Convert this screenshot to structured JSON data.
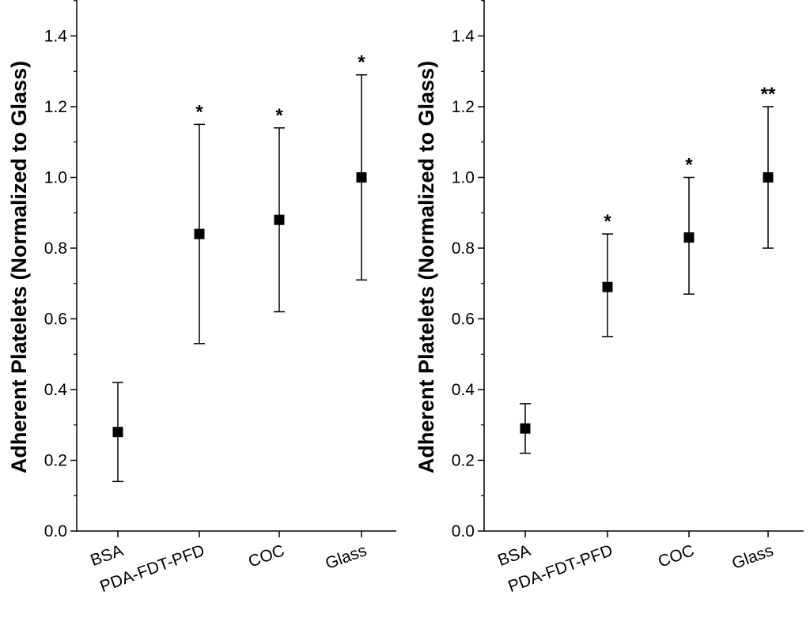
{
  "chart_data": [
    {
      "type": "scatter",
      "ylabel": "Adherent Platelets (Normalized to Glass)",
      "xlabel": "",
      "title": "",
      "ylim": [
        0,
        1.5
      ],
      "yticks": [
        "0.0",
        "0.2",
        "0.4",
        "0.6",
        "0.8",
        "1.0",
        "1.2",
        "1.4"
      ],
      "categories": [
        "BSA",
        "PDA-FDT-PFD",
        "COC",
        "Glass"
      ],
      "values": [
        0.28,
        0.84,
        0.88,
        1.0
      ],
      "error_low": [
        0.14,
        0.53,
        0.62,
        0.71
      ],
      "error_high": [
        0.42,
        1.15,
        1.14,
        1.29
      ],
      "significance": [
        "",
        "*",
        "*",
        "*"
      ]
    },
    {
      "type": "scatter",
      "ylabel": "Adherent Platelets (Normalized to Glass)",
      "xlabel": "",
      "title": "",
      "ylim": [
        0,
        1.5
      ],
      "yticks": [
        "0.0",
        "0.2",
        "0.4",
        "0.6",
        "0.8",
        "1.0",
        "1.2",
        "1.4"
      ],
      "categories": [
        "BSA",
        "PDA-FDT-PFD",
        "COC",
        "Glass"
      ],
      "values": [
        0.29,
        0.69,
        0.83,
        1.0
      ],
      "error_low": [
        0.22,
        0.55,
        0.67,
        0.8
      ],
      "error_high": [
        0.36,
        0.84,
        1.0,
        1.2
      ],
      "significance": [
        "",
        "*",
        "*",
        "**"
      ]
    }
  ]
}
